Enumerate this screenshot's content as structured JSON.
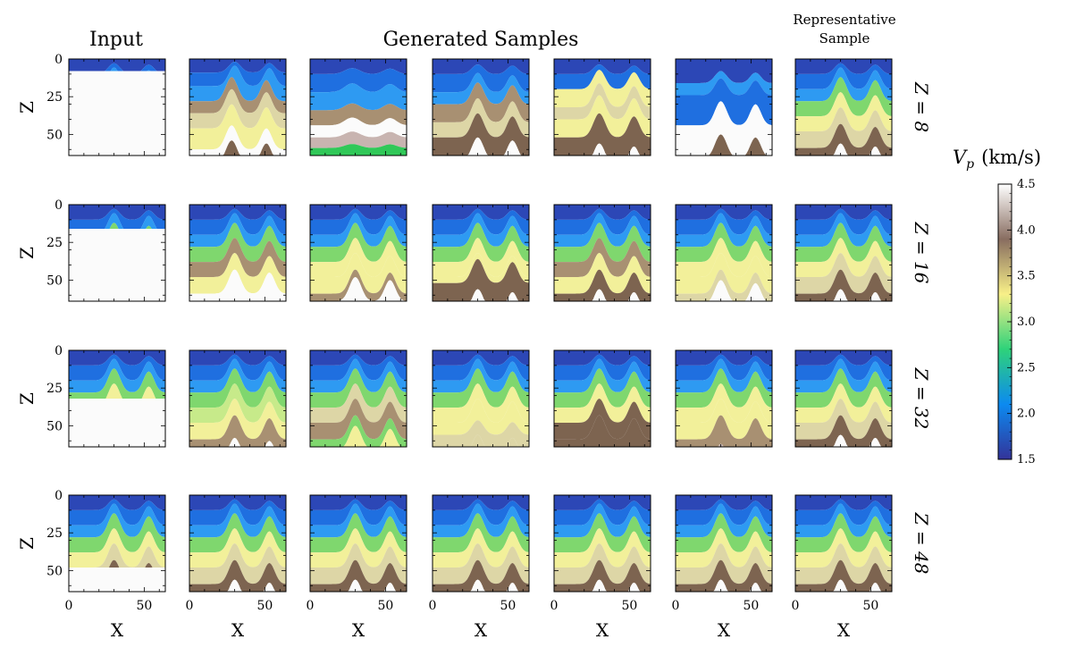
{
  "headers": {
    "input": "Input",
    "generated": "Generated Samples",
    "representative_line1": "Representative",
    "representative_line2": "Sample"
  },
  "chart_data": {
    "type": "heatmap",
    "xlabel": "X",
    "ylabel": "Z",
    "xlim": [
      0,
      64
    ],
    "ylim": [
      64,
      0
    ],
    "x_ticks": [
      "0",
      "50"
    ],
    "y_ticks": [
      "0",
      "25",
      "50"
    ],
    "columns": [
      "Input",
      "Generated Samples",
      "Generated Samples",
      "Generated Samples",
      "Generated Samples",
      "Generated Samples",
      "Representative Sample"
    ],
    "rows": [
      {
        "label": "Z = 8",
        "z": 8
      },
      {
        "label": "Z = 16",
        "z": 16
      },
      {
        "label": "Z = 32",
        "z": 32
      },
      {
        "label": "Z = 48",
        "z": 48
      }
    ],
    "colorbar": {
      "label": "V",
      "label_sub": "p",
      "label_unit": "(km/s)",
      "min": 1.5,
      "max": 4.5,
      "ticks": [
        "4.5",
        "4.0",
        "3.5",
        "3.0",
        "2.5",
        "2.0",
        "1.5"
      ],
      "colormap": "terrain",
      "colors": [
        "#333399",
        "#0c8af0",
        "#2ed27a",
        "#f8f088",
        "#886d60",
        "#ffffff"
      ]
    }
  }
}
